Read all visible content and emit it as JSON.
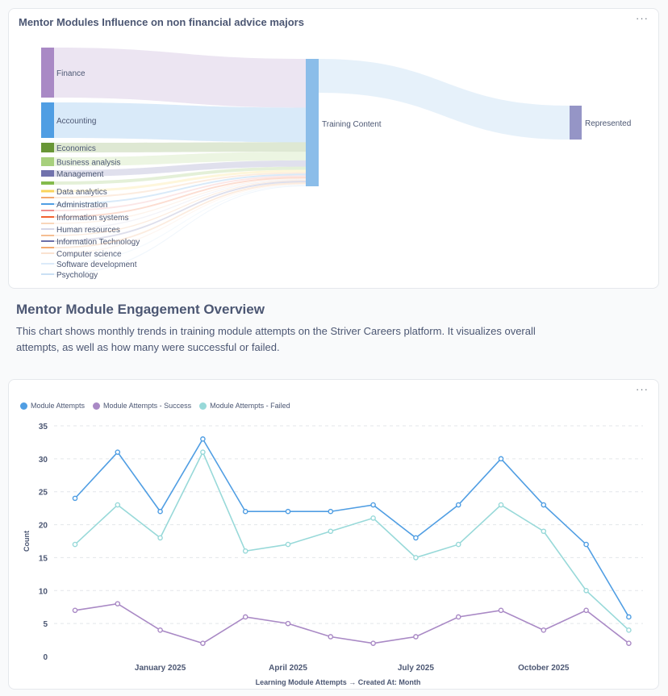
{
  "sankey_card": {
    "title": "Mentor Modules Influence on non financial advice majors",
    "menu_icon": "ellipsis-icon"
  },
  "section": {
    "heading": "Mentor Module Engagement Overview",
    "description": "This chart shows monthly trends in training module attempts on the Striver Careers platform. It visualizes overall attempts, as well as how many were successful or failed."
  },
  "line_card": {
    "menu_icon": "ellipsis-icon"
  },
  "chart_data": [
    {
      "type": "sankey",
      "title": "Mentor Modules Influence on non financial advice majors",
      "nodes_left": [
        {
          "name": "Finance",
          "value": 62,
          "color": "#a989c5"
        },
        {
          "name": "Accounting",
          "value": 44,
          "color": "#509ee3"
        },
        {
          "name": "Economics",
          "value": 12,
          "color": "#689636"
        },
        {
          "name": "Business analysis",
          "value": 11,
          "color": "#a7d07c"
        },
        {
          "name": "Management",
          "value": 8,
          "color": "#7172ad"
        },
        {
          "name": "",
          "value": 4,
          "color": "#84bb4c"
        },
        {
          "name": "Data analytics",
          "value": 3,
          "color": "#f9d45c"
        },
        {
          "name": "",
          "value": 2,
          "color": "#f2a86f"
        },
        {
          "name": "Administration",
          "value": 2,
          "color": "#509ee3"
        },
        {
          "name": "",
          "value": 2,
          "color": "#ef8c8c"
        },
        {
          "name": "Information systems",
          "value": 2,
          "color": "#f2622f"
        },
        {
          "name": "",
          "value": 1,
          "color": "#f7c8a3"
        },
        {
          "name": "Human resources",
          "value": 1,
          "color": "#c9c9dd"
        },
        {
          "name": "",
          "value": 1,
          "color": "#f2a86f"
        },
        {
          "name": "Information Technology",
          "value": 2,
          "color": "#6b6fa8"
        },
        {
          "name": "",
          "value": 2,
          "color": "#f2a86f"
        },
        {
          "name": "Computer science",
          "value": 1,
          "color": "#f9d8c0"
        },
        {
          "name": "Software development",
          "value": 1,
          "color": "#cfe3f7"
        },
        {
          "name": "Psychology",
          "value": 1,
          "color": "#b9d5f0"
        }
      ],
      "middle": {
        "name": "Training Content",
        "color": "#8bbde9"
      },
      "right": {
        "name": "Represented",
        "value": 42,
        "color": "#9595c6"
      }
    },
    {
      "type": "line",
      "xlabel": "Learning Module Attempts → Created At: Month",
      "ylabel": "Count",
      "ylim": [
        0,
        35
      ],
      "yticks": [
        0,
        5,
        10,
        15,
        20,
        25,
        30,
        35
      ],
      "x": [
        "2024-11",
        "2024-12",
        "2025-01",
        "2025-02",
        "2025-03",
        "2025-04",
        "2025-05",
        "2025-06",
        "2025-07",
        "2025-08",
        "2025-09",
        "2025-10",
        "2025-11",
        "2025-12"
      ],
      "xtick_labels": [
        {
          "index": 2,
          "label": "January 2025"
        },
        {
          "index": 5,
          "label": "April 2025"
        },
        {
          "index": 8,
          "label": "July 2025"
        },
        {
          "index": 11,
          "label": "October 2025"
        }
      ],
      "grid": true,
      "legend": "top-left",
      "series": [
        {
          "name": "Module Attempts",
          "color": "#509ee3",
          "values": [
            24,
            31,
            22,
            33,
            22,
            22,
            22,
            23,
            18,
            23,
            30,
            23,
            17,
            6
          ]
        },
        {
          "name": "Module Attempts - Success",
          "color": "#a989c5",
          "values": [
            7,
            8,
            4,
            2,
            6,
            5,
            3,
            2,
            3,
            6,
            7,
            4,
            7,
            2
          ]
        },
        {
          "name": "Module Attempts - Failed",
          "color": "#98d9d9",
          "values": [
            17,
            23,
            18,
            31,
            16,
            17,
            19,
            21,
            15,
            17,
            23,
            19,
            10,
            4
          ]
        }
      ]
    }
  ]
}
